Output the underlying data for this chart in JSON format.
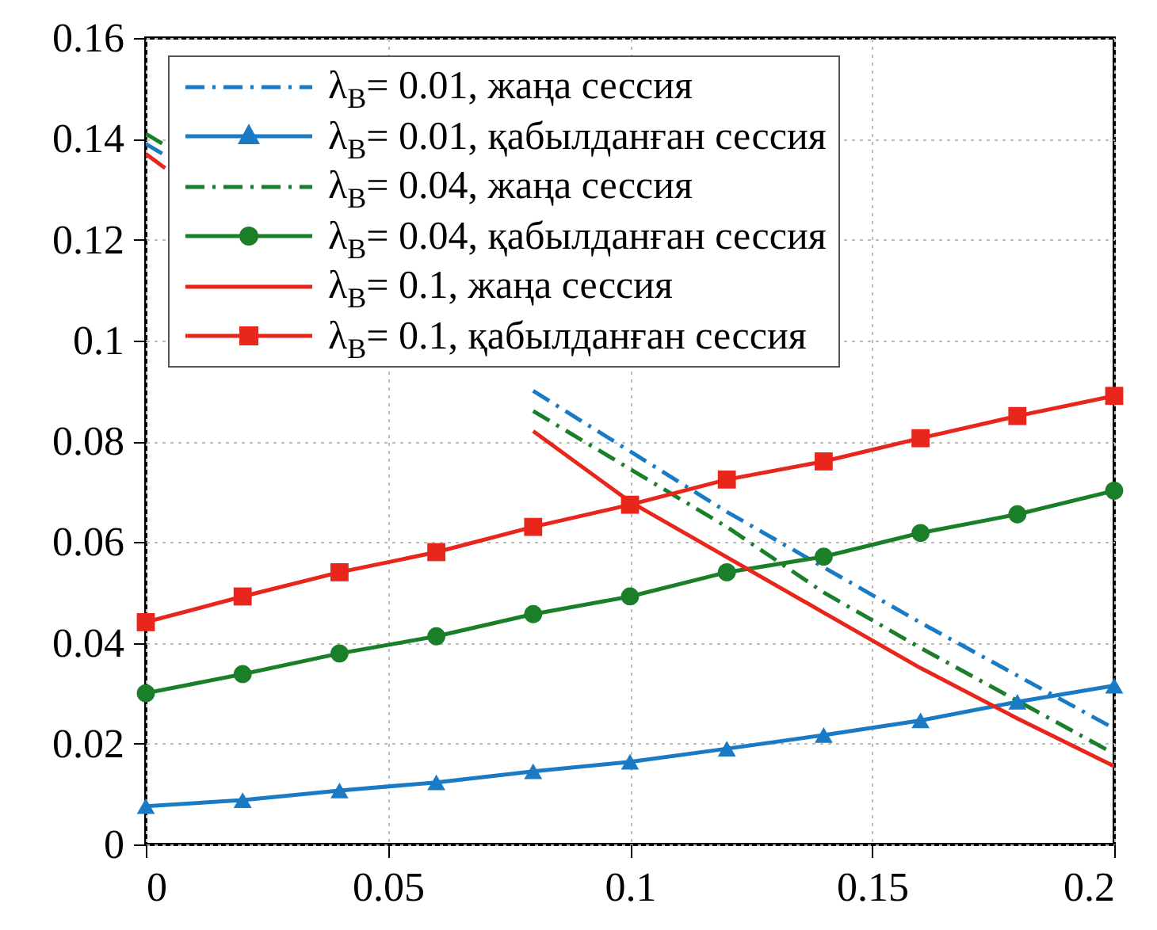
{
  "chart_data": {
    "type": "line",
    "xlim": [
      0,
      0.2
    ],
    "ylim": [
      0,
      0.16
    ],
    "xticks": [
      0,
      0.05,
      0.1,
      0.15,
      0.2
    ],
    "yticks": [
      0,
      0.02,
      0.04,
      0.06,
      0.08,
      0.1,
      0.12,
      0.14,
      0.16
    ],
    "grid": true,
    "legend": "top left",
    "series": [
      {
        "name": "λ$_{B}$= 0.01, жаңа сессия",
        "color": "#1a7bc4",
        "line_style": "dashed",
        "marker": "none",
        "x": [
          0,
          0.004,
          0.03,
          0.08,
          0.1,
          0.12,
          0.14,
          0.16,
          0.18,
          0.2
        ],
        "values": [
          0.139,
          0.1367,
          null,
          0.09,
          0.078,
          0.066,
          0.055,
          0.044,
          0.0335,
          0.023
        ]
      },
      {
        "name": "λ$_{B}$= 0.01, қабылданған сессия",
        "color": "#1a7bc4",
        "line_style": "solid",
        "marker": "triangle",
        "x": [
          0,
          0.02,
          0.04,
          0.06,
          0.08,
          0.1,
          0.12,
          0.14,
          0.16,
          0.18,
          0.2
        ],
        "values": [
          0.0076,
          0.0088,
          0.0107,
          0.0123,
          0.0145,
          0.0164,
          0.019,
          0.0217,
          0.0246,
          0.0283,
          0.0315
        ]
      },
      {
        "name": "λ$_{B}$= 0.04, жаңа сессия",
        "color": "#1b7f2a",
        "line_style": "dashed",
        "marker": "none",
        "x": [
          0,
          0.004,
          0.03,
          0.08,
          0.1,
          0.12,
          0.14,
          0.16,
          0.18,
          0.2
        ],
        "values": [
          0.141,
          0.1387,
          null,
          0.086,
          0.0745,
          0.063,
          0.05,
          0.039,
          0.0285,
          0.018
        ]
      },
      {
        "name": "λ$_{B}$= 0.04, қабылданған сессия",
        "color": "#1b7f2a",
        "line_style": "solid",
        "marker": "circle",
        "x": [
          0,
          0.02,
          0.04,
          0.06,
          0.08,
          0.1,
          0.12,
          0.14,
          0.16,
          0.18,
          0.2
        ],
        "values": [
          0.03,
          0.0338,
          0.0379,
          0.0413,
          0.0457,
          0.0492,
          0.054,
          0.0571,
          0.0618,
          0.0655,
          0.0702
        ]
      },
      {
        "name": "λ$_{B}$= 0.1, жаңа сессия",
        "color": "#e8261c",
        "line_style": "solid",
        "marker": "none",
        "x": [
          0,
          0.004,
          0.03,
          0.08,
          0.1,
          0.12,
          0.14,
          0.16,
          0.18,
          0.2
        ],
        "values": [
          0.137,
          0.1342,
          null,
          0.082,
          0.068,
          0.057,
          0.046,
          0.035,
          0.025,
          0.0155
        ]
      },
      {
        "name": "λ$_{B}$= 0.1, қабылданған сессия",
        "color": "#e8261c",
        "line_style": "solid",
        "marker": "square",
        "x": [
          0,
          0.02,
          0.04,
          0.06,
          0.08,
          0.1,
          0.12,
          0.14,
          0.16,
          0.18,
          0.2
        ],
        "values": [
          0.0441,
          0.0492,
          0.054,
          0.058,
          0.063,
          0.0674,
          0.0724,
          0.076,
          0.0806,
          0.085,
          0.089
        ]
      }
    ]
  }
}
